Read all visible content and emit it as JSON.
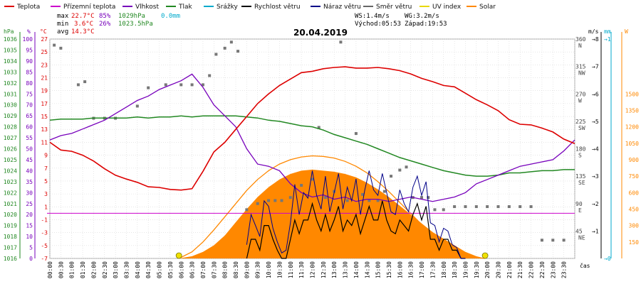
{
  "chart_data": {
    "type": "line",
    "title": "20.04.2019",
    "legend": {
      "placement": "top",
      "entries": [
        {
          "name": "Teplota",
          "color": "#dd0000"
        },
        {
          "name": "Přízemní teplota",
          "color": "#cc00cc"
        },
        {
          "name": "Vlhkost",
          "color": "#7700bb"
        },
        {
          "name": "Tlak",
          "color": "#228822"
        },
        {
          "name": "Srážky",
          "color": "#00aacc"
        },
        {
          "name": "Rychlost větru",
          "color": "#000000"
        },
        {
          "name": "Náraz větru",
          "color": "#000088"
        },
        {
          "name": "Směr větru",
          "color": "#666666"
        },
        {
          "name": "UV index",
          "color": "#e8d800"
        },
        {
          "name": "Solar",
          "color": "#ff8800"
        }
      ]
    },
    "stats": {
      "max_label": "max",
      "max_temp": "22.7°C",
      "max_hum": "85%",
      "max_press": "1029hPa",
      "rain": "0.0mm",
      "min_label": "min",
      "min_temp": "3.6°C",
      "min_hum": "26%",
      "min_press": "1023.5hPa",
      "avg_label": "avg",
      "avg_temp": "14.3°C",
      "wind_avg": "WS:1.4m/s",
      "wind_gust": "WG:3.2m/s",
      "sunrise": "Východ:05:53",
      "sunset": "Západ:19:53"
    },
    "axes": {
      "hpa": {
        "unit": "hPa",
        "ticks": [
          "1036",
          "1035",
          "1034",
          "1033",
          "1032",
          "1031",
          "1030",
          "1029",
          "1028",
          "1027",
          "1026",
          "1025",
          "1024",
          "1023",
          "1022",
          "1021",
          "1020",
          "1019",
          "1018",
          "1017",
          "1016"
        ],
        "range": [
          1016,
          1036
        ],
        "color": "#228822"
      },
      "percent": {
        "unit": "%",
        "ticks": [
          "100",
          "95",
          "90",
          "85",
          "80",
          "75",
          "70",
          "65",
          "60",
          "55",
          "50",
          "45",
          "40",
          "35",
          "30",
          "25",
          "20",
          "15",
          "10",
          "5",
          "0"
        ],
        "range": [
          0,
          100
        ],
        "color": "#7700bb"
      },
      "temperature": {
        "unit": "°C",
        "ticks": [
          "27",
          "25",
          "23",
          "21",
          "19",
          "17",
          "15",
          "13",
          "11",
          "9",
          "7",
          "5",
          "3",
          "1",
          "-1",
          "-3",
          "-5",
          "-7"
        ],
        "range": [
          -7,
          27
        ],
        "color": "#dd0000"
      },
      "wind_direction": {
        "ticks": [
          "360",
          "315",
          "270",
          "225",
          "180",
          "135",
          "90",
          "45"
        ],
        "letters": [
          "N",
          "NW",
          "W",
          "SW",
          "S",
          "SE",
          "E",
          "NE"
        ],
        "range": [
          0,
          360
        ],
        "color": "#444444"
      },
      "wind_speed": {
        "unit": "m/s",
        "ticks": [
          "8",
          "7",
          "6",
          "5",
          "4",
          "3",
          "2",
          "1"
        ],
        "range": [
          0,
          8
        ],
        "color": "#000000"
      },
      "rain": {
        "unit": "mm",
        "ticks": [
          "1",
          "0"
        ],
        "range": [
          0,
          1
        ],
        "color": "#00aacc"
      },
      "solar": {
        "unit": "W",
        "ticks": [
          "1500",
          "1350",
          "1200",
          "1050",
          "900",
          "750",
          "600",
          "450",
          "300",
          "150"
        ],
        "range": [
          0,
          2000
        ],
        "color": "#ff8800"
      },
      "x": {
        "label": "čas",
        "ticks": [
          "00:00",
          "00:30",
          "01:00",
          "01:30",
          "02:00",
          "02:30",
          "03:00",
          "03:30",
          "04:00",
          "04:30",
          "05:00",
          "05:30",
          "06:00",
          "06:30",
          "07:00",
          "07:30",
          "08:00",
          "08:30",
          "09:00",
          "09:30",
          "10:00",
          "10:30",
          "11:00",
          "11:30",
          "12:00",
          "12:30",
          "13:00",
          "13:30",
          "14:00",
          "14:30",
          "15:00",
          "15:30",
          "16:00",
          "16:30",
          "17:00",
          "17:30",
          "18:00",
          "18:30",
          "19:00",
          "19:30",
          "20:00",
          "20:30",
          "21:00",
          "21:30",
          "22:00",
          "22:30",
          "23:00",
          "23:30"
        ],
        "range_hours": [
          0,
          24
        ]
      }
    },
    "grid": true,
    "series": [
      {
        "name": "Teplota",
        "unit": "°C",
        "x_hours": [
          0,
          0.5,
          1,
          1.5,
          2,
          2.5,
          3,
          3.5,
          4,
          4.5,
          5,
          5.5,
          6,
          6.5,
          7,
          7.5,
          8,
          8.5,
          9,
          9.5,
          10,
          10.5,
          11,
          11.5,
          12,
          12.5,
          13,
          13.5,
          14,
          14.5,
          15,
          15.5,
          16,
          16.5,
          17,
          17.5,
          18,
          18.5,
          19,
          19.5,
          20,
          20.5,
          21,
          21.5,
          22,
          22.5,
          23,
          23.5,
          24
        ],
        "values": [
          11,
          9.8,
          9.6,
          9,
          8.1,
          6.9,
          5.9,
          5.3,
          4.8,
          4.1,
          4,
          3.7,
          3.6,
          3.8,
          6.5,
          9.5,
          11,
          13,
          15,
          17,
          18.5,
          19.8,
          20.8,
          21.8,
          22,
          22.4,
          22.6,
          22.7,
          22.5,
          22.5,
          22.6,
          22.4,
          22.1,
          21.6,
          20.9,
          20.4,
          19.8,
          19.6,
          18.6,
          17.6,
          16.8,
          15.9,
          14.5,
          13.8,
          13.7,
          13.2,
          12.6,
          11.5,
          10.8
        ]
      },
      {
        "name": "Vlhkost",
        "unit": "%",
        "x_hours": [
          0,
          0.5,
          1,
          1.5,
          2,
          2.5,
          3,
          3.5,
          4,
          4.5,
          5,
          5.5,
          6,
          6.5,
          7,
          7.5,
          8,
          8.5,
          9,
          9.5,
          10,
          10.5,
          11,
          11.5,
          12,
          12.5,
          13,
          13.5,
          14,
          14.5,
          15,
          15.5,
          16,
          16.5,
          17,
          17.5,
          18,
          18.5,
          19,
          19.5,
          20,
          20.5,
          21,
          21.5,
          22,
          22.5,
          23,
          23.5,
          24
        ],
        "values": [
          54,
          56,
          57,
          59,
          61,
          63,
          66,
          69,
          72,
          74,
          77,
          79,
          81,
          84,
          78,
          70,
          65,
          60,
          50,
          43,
          42,
          40,
          34,
          30,
          28,
          29,
          27,
          28,
          26,
          27,
          27,
          26,
          27,
          28,
          27,
          26,
          27,
          28,
          30,
          34,
          36,
          38,
          40,
          42,
          43,
          44,
          45,
          49,
          54
        ]
      },
      {
        "name": "Tlak",
        "unit": "hPa",
        "x_hours": [
          0,
          0.5,
          1,
          1.5,
          2,
          2.5,
          3,
          3.5,
          4,
          4.5,
          5,
          5.5,
          6,
          6.5,
          7,
          7.5,
          8,
          8.5,
          9,
          9.5,
          10,
          10.5,
          11,
          11.5,
          12,
          12.5,
          13,
          13.5,
          14,
          14.5,
          15,
          15.5,
          16,
          16.5,
          17,
          17.5,
          18,
          18.5,
          19,
          19.5,
          20,
          20.5,
          21,
          21.5,
          22,
          22.5,
          23,
          23.5,
          24
        ],
        "values": [
          1028.6,
          1028.7,
          1028.7,
          1028.7,
          1028.8,
          1028.8,
          1028.8,
          1028.8,
          1028.9,
          1028.8,
          1028.9,
          1028.9,
          1029,
          1028.9,
          1029,
          1029,
          1029,
          1029,
          1028.9,
          1028.8,
          1028.6,
          1028.5,
          1028.3,
          1028.1,
          1028,
          1027.7,
          1027.3,
          1027,
          1026.7,
          1026.4,
          1026,
          1025.6,
          1025.2,
          1024.9,
          1024.6,
          1024.3,
          1024,
          1023.8,
          1023.6,
          1023.5,
          1023.5,
          1023.6,
          1023.8,
          1023.8,
          1023.9,
          1024,
          1024,
          1024.1,
          1024.1
        ]
      },
      {
        "name": "Solar",
        "unit": "W",
        "x_hours": [
          5.9,
          6.5,
          7,
          7.5,
          8,
          8.5,
          9,
          9.5,
          10,
          10.5,
          11,
          11.5,
          12,
          12.5,
          13,
          13.5,
          14,
          14.5,
          15,
          15.5,
          16,
          16.5,
          17,
          17.5,
          18,
          18.5,
          19,
          19.5,
          19.9
        ],
        "values": [
          0,
          20,
          60,
          120,
          210,
          330,
          450,
          560,
          650,
          720,
          770,
          800,
          810,
          800,
          790,
          770,
          740,
          690,
          630,
          560,
          480,
          400,
          320,
          240,
          180,
          120,
          60,
          20,
          0
        ]
      },
      {
        "name": "Solar theoretical",
        "unit": "W",
        "x_hours": [
          5.9,
          6.5,
          7,
          7.5,
          8,
          8.5,
          9,
          9.5,
          10,
          10.5,
          11,
          11.5,
          12,
          12.5,
          13,
          13.5,
          14,
          14.5,
          15,
          15.5,
          16,
          16.5,
          17,
          17.5,
          18,
          18.5,
          19,
          19.5,
          19.9
        ],
        "values": [
          0,
          60,
          150,
          260,
          380,
          500,
          620,
          720,
          800,
          860,
          900,
          925,
          935,
          930,
          915,
          885,
          840,
          780,
          700,
          610,
          510,
          410,
          310,
          220,
          140,
          80,
          30,
          8,
          0
        ]
      },
      {
        "name": "Rychlost větru",
        "unit": "m/s",
        "x_hours": [
          9,
          9.2,
          9.4,
          9.6,
          9.8,
          10,
          10.2,
          10.4,
          10.6,
          10.8,
          11,
          11.2,
          11.4,
          11.6,
          11.8,
          12,
          12.2,
          12.4,
          12.6,
          12.8,
          13,
          13.2,
          13.4,
          13.6,
          13.8,
          14,
          14.2,
          14.4,
          14.6,
          14.8,
          15,
          15.2,
          15.4,
          15.6,
          15.8,
          16,
          16.2,
          16.4,
          16.6,
          16.8,
          17,
          17.2,
          17.4,
          17.6,
          17.8,
          18,
          18.2,
          18.4,
          18.6,
          18.8,
          19
        ],
        "values": [
          0,
          0.7,
          0.7,
          0.3,
          1.2,
          1.2,
          0.7,
          0.3,
          0,
          0,
          0.7,
          1.4,
          0.9,
          1.4,
          1.4,
          2,
          1.4,
          1,
          1.6,
          1,
          1.4,
          1.9,
          1,
          1.4,
          1.2,
          1.6,
          0.9,
          1.4,
          1.9,
          1.4,
          1.4,
          2.1,
          1.4,
          1,
          0.9,
          1.4,
          1.2,
          1,
          1.6,
          2,
          1.4,
          1.9,
          0.7,
          0.7,
          0.3,
          0.7,
          0.7,
          0.3,
          0.3,
          0,
          0
        ]
      },
      {
        "name": "Náraz větru",
        "unit": "m/s",
        "x_hours": [
          9,
          9.2,
          9.4,
          9.6,
          9.8,
          10,
          10.2,
          10.4,
          10.6,
          10.8,
          11,
          11.2,
          11.4,
          11.6,
          11.8,
          12,
          12.2,
          12.4,
          12.6,
          12.8,
          13,
          13.2,
          13.4,
          13.6,
          13.8,
          14,
          14.2,
          14.4,
          14.6,
          14.8,
          15,
          15.2,
          15.4,
          15.6,
          15.8,
          16,
          16.2,
          16.4,
          16.6,
          16.8,
          17,
          17.2,
          17.4,
          17.6,
          17.8,
          18,
          18.2,
          18.4,
          18.6,
          18.8,
          19
        ],
        "values": [
          0.5,
          1.6,
          1.2,
          0.8,
          2.1,
          1.9,
          1.1,
          0.6,
          0.2,
          0.3,
          1.3,
          2.7,
          1.6,
          2.4,
          2.2,
          3.2,
          2.3,
          1.8,
          3,
          1.7,
          2.4,
          3.1,
          1.8,
          2.6,
          2.1,
          2.9,
          1.6,
          2.5,
          3.2,
          2.5,
          2.3,
          3.1,
          2.4,
          1.7,
          1.6,
          2.5,
          2,
          1.7,
          2.6,
          3,
          2.3,
          2.8,
          1.3,
          1.2,
          0.6,
          1.1,
          1,
          0.5,
          0.4,
          0,
          0
        ]
      },
      {
        "name": "Směr větru",
        "unit": "°",
        "x_hours": [
          0.2,
          0.5,
          1.3,
          1.6,
          2,
          2.5,
          3,
          4,
          4.5,
          5.3,
          6,
          6.5,
          7,
          7.3,
          7.6,
          8,
          8.3,
          8.6,
          9,
          9.5,
          10,
          10.3,
          10.6,
          11,
          11.5,
          12,
          12.3,
          12.6,
          13,
          13.3,
          13.6,
          14,
          14.3,
          14.6,
          15,
          15.3,
          15.6,
          16,
          16.3,
          16.6,
          17,
          17.3,
          17.6,
          18,
          18.5,
          19,
          19.5,
          20,
          20.5,
          21,
          21.5,
          22,
          22.5,
          23,
          23.5
        ],
        "values": [
          350,
          345,
          285,
          290,
          230,
          230,
          230,
          250,
          280,
          285,
          285,
          285,
          285,
          300,
          335,
          345,
          355,
          340,
          80,
          90,
          95,
          95,
          95,
          100,
          120,
          130,
          215,
          100,
          110,
          355,
          95,
          205,
          105,
          95,
          95,
          110,
          135,
          145,
          150,
          100,
          100,
          100,
          80,
          80,
          85,
          85,
          85,
          85,
          85,
          85,
          85,
          85,
          30,
          30,
          30
        ]
      },
      {
        "name": "UV index",
        "unit": "",
        "x_hours": [
          5.9,
          19.9
        ],
        "values": [
          0,
          0
        ]
      }
    ]
  }
}
